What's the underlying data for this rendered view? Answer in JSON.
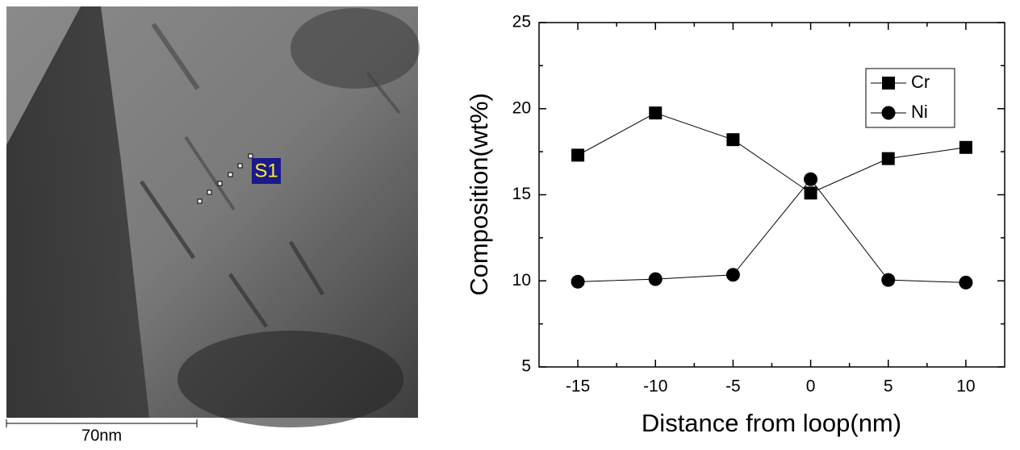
{
  "image": {
    "label": "S1",
    "scale_bar": "70nm"
  },
  "chart_data": {
    "type": "line",
    "x_label": "Distance from loop(nm)",
    "y_label": "Composition(wt%)",
    "x": [
      -15,
      -10,
      -5,
      0,
      5,
      10
    ],
    "series": [
      {
        "name": "Cr",
        "color": "#000000",
        "marker": "square",
        "values": [
          17.3,
          19.75,
          18.2,
          15.1,
          17.1,
          17.75
        ]
      },
      {
        "name": "Ni",
        "color": "#000000",
        "marker": "circle",
        "values": [
          9.95,
          10.1,
          10.35,
          15.9,
          10.05,
          9.9
        ]
      }
    ],
    "xlim": [
      -17.5,
      12.5
    ],
    "xticks": [
      -15,
      -10,
      -5,
      0,
      5,
      10
    ],
    "ylim": [
      5,
      25
    ],
    "yticks": [
      5,
      10,
      15,
      20,
      25
    ],
    "legend": "upper right"
  }
}
